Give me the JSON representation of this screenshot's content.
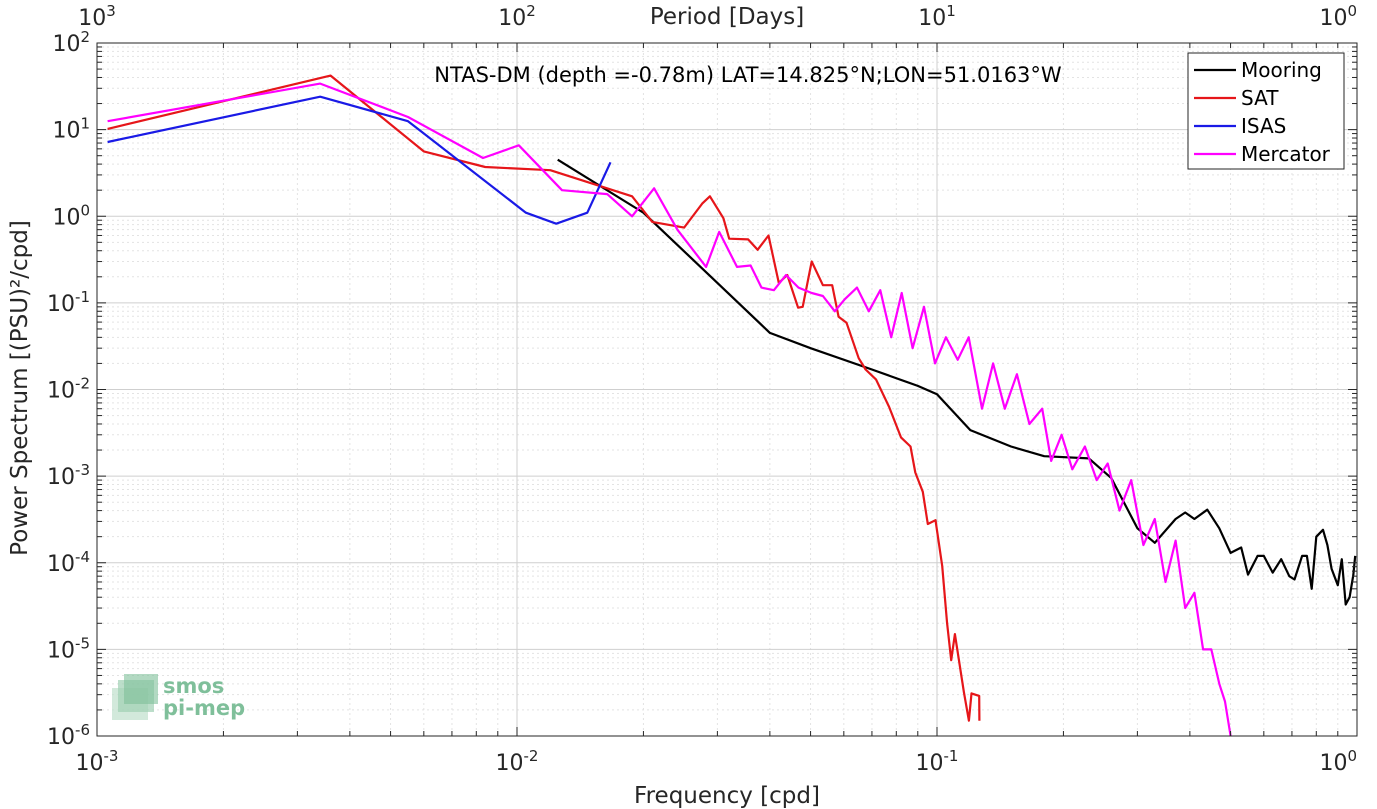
{
  "chart_data": {
    "type": "line",
    "title": "NTAS-DM (depth =-0.78m) LAT=14.825°N;LON=51.0163°W",
    "xlabel": "Frequency [cpd]",
    "ylabel": "Power Spectrum [(PSU)²/cpd]",
    "top_xlabel": "Period [Days]",
    "x_scale": "log",
    "y_scale": "log",
    "xlim": [
      0.001,
      1
    ],
    "ylim": [
      1e-06,
      100
    ],
    "grid": true,
    "legend_position": "top-right",
    "x_ticks": [
      {
        "base": "10",
        "exp": "-3",
        "value": 0.001
      },
      {
        "base": "10",
        "exp": "-2",
        "value": 0.01
      },
      {
        "base": "10",
        "exp": "-1",
        "value": 0.1
      },
      {
        "base": "10",
        "exp": "0",
        "value": 1
      }
    ],
    "y_ticks": [
      {
        "base": "10",
        "exp": "2",
        "value": 100
      },
      {
        "base": "10",
        "exp": "1",
        "value": 10
      },
      {
        "base": "10",
        "exp": "0",
        "value": 1
      },
      {
        "base": "10",
        "exp": "-1",
        "value": 0.1
      },
      {
        "base": "10",
        "exp": "-2",
        "value": 0.01
      },
      {
        "base": "10",
        "exp": "-3",
        "value": 0.001
      },
      {
        "base": "10",
        "exp": "-4",
        "value": 0.0001
      },
      {
        "base": "10",
        "exp": "-5",
        "value": 1e-05
      },
      {
        "base": "10",
        "exp": "-6",
        "value": 1e-06
      }
    ],
    "top_ticks": [
      {
        "base": "10",
        "exp": "3",
        "value": 1000
      },
      {
        "base": "10",
        "exp": "2",
        "value": 100
      },
      {
        "base": "10",
        "exp": "1",
        "value": 10
      },
      {
        "base": "10",
        "exp": "0",
        "value": 1
      }
    ],
    "series": [
      {
        "name": "Mooring",
        "color": "#000000",
        "points": [
          [
            0.0125,
            4.5
          ],
          [
            0.02,
            1.1
          ],
          [
            0.03,
            0.17
          ],
          [
            0.04,
            0.045
          ],
          [
            0.05,
            0.03
          ],
          [
            0.07,
            0.017
          ],
          [
            0.09,
            0.011
          ],
          [
            0.1,
            0.0088
          ],
          [
            0.12,
            0.0034
          ],
          [
            0.15,
            0.0022
          ],
          [
            0.18,
            0.0017
          ],
          [
            0.23,
            0.0016
          ],
          [
            0.26,
            0.00095
          ],
          [
            0.3,
            0.00025
          ],
          [
            0.33,
            0.00017
          ],
          [
            0.37,
            0.00032
          ],
          [
            0.39,
            0.00038
          ],
          [
            0.41,
            0.00032
          ],
          [
            0.44,
            0.00041
          ],
          [
            0.47,
            0.00025
          ],
          [
            0.5,
            0.00013
          ],
          [
            0.53,
            0.00015
          ],
          [
            0.55,
            7.3e-05
          ],
          [
            0.58,
            0.00012
          ],
          [
            0.6,
            0.00012
          ],
          [
            0.63,
            7.7e-05
          ],
          [
            0.66,
            0.00011
          ],
          [
            0.69,
            7e-05
          ],
          [
            0.71,
            6.4e-05
          ],
          [
            0.74,
            0.00012
          ],
          [
            0.76,
            0.00012
          ],
          [
            0.78,
            5e-05
          ],
          [
            0.8,
            0.0002
          ],
          [
            0.83,
            0.00024
          ],
          [
            0.85,
            0.00016
          ],
          [
            0.87,
            8.5e-05
          ],
          [
            0.9,
            5.5e-05
          ],
          [
            0.92,
            0.00011
          ],
          [
            0.94,
            3.3e-05
          ],
          [
            0.96,
            4e-05
          ],
          [
            0.98,
            7.2e-05
          ],
          [
            0.99,
            0.00012
          ]
        ]
      },
      {
        "name": "SAT",
        "color": "#e6161a",
        "points": [
          [
            0.00106,
            10.2
          ],
          [
            0.0036,
            42
          ],
          [
            0.006,
            5.6
          ],
          [
            0.0084,
            3.7
          ],
          [
            0.012,
            3.4
          ],
          [
            0.0188,
            1.7
          ],
          [
            0.021,
            0.86
          ],
          [
            0.025,
            0.74
          ],
          [
            0.0276,
            1.4
          ],
          [
            0.0288,
            1.7
          ],
          [
            0.031,
            0.95
          ],
          [
            0.032,
            0.55
          ],
          [
            0.0355,
            0.54
          ],
          [
            0.0374,
            0.41
          ],
          [
            0.0397,
            0.6
          ],
          [
            0.042,
            0.17
          ],
          [
            0.044,
            0.21
          ],
          [
            0.0467,
            0.088
          ],
          [
            0.0479,
            0.09
          ],
          [
            0.0503,
            0.3
          ],
          [
            0.0535,
            0.16
          ],
          [
            0.0563,
            0.16
          ],
          [
            0.0583,
            0.069
          ],
          [
            0.0609,
            0.059
          ],
          [
            0.0651,
            0.023
          ],
          [
            0.0676,
            0.017
          ],
          [
            0.0716,
            0.013
          ],
          [
            0.0769,
            0.0063
          ],
          [
            0.0821,
            0.0028
          ],
          [
            0.0865,
            0.0022
          ],
          [
            0.0888,
            0.0011
          ],
          [
            0.0925,
            0.00066
          ],
          [
            0.0951,
            0.00028
          ],
          [
            0.0992,
            0.00031
          ],
          [
            0.1029,
            9.2e-05
          ],
          [
            0.1057,
            2e-05
          ],
          [
            0.1081,
            7.5e-06
          ],
          [
            0.1103,
            1.5e-05
          ],
          [
            0.1159,
            3.2e-06
          ],
          [
            0.1191,
            1.5e-06
          ],
          [
            0.1208,
            3.1e-06
          ],
          [
            0.126,
            2.9e-06
          ],
          [
            0.1262,
            1.5e-06
          ]
        ]
      },
      {
        "name": "ISAS",
        "color": "#1a1ae6",
        "points": [
          [
            0.00106,
            7.2
          ],
          [
            0.0034,
            24
          ],
          [
            0.0055,
            12.5
          ],
          [
            0.0105,
            1.1
          ],
          [
            0.0124,
            0.82
          ],
          [
            0.0147,
            1.1
          ],
          [
            0.0167,
            4.2
          ]
        ]
      },
      {
        "name": "Mercator",
        "color": "#ff00ff",
        "points": [
          [
            0.00106,
            12.5
          ],
          [
            0.0034,
            34
          ],
          [
            0.0055,
            14
          ],
          [
            0.0083,
            4.7
          ],
          [
            0.0101,
            6.6
          ],
          [
            0.0128,
            2
          ],
          [
            0.0164,
            1.8
          ],
          [
            0.0188,
            1
          ],
          [
            0.0212,
            2.1
          ],
          [
            0.0241,
            0.7
          ],
          [
            0.0282,
            0.26
          ],
          [
            0.0303,
            0.66
          ],
          [
            0.0334,
            0.26
          ],
          [
            0.036,
            0.27
          ],
          [
            0.0382,
            0.15
          ],
          [
            0.0409,
            0.14
          ],
          [
            0.0437,
            0.21
          ],
          [
            0.0468,
            0.15
          ],
          [
            0.0503,
            0.13
          ],
          [
            0.0535,
            0.12
          ],
          [
            0.0571,
            0.08
          ],
          [
            0.0603,
            0.11
          ],
          [
            0.0645,
            0.15
          ],
          [
            0.0688,
            0.08
          ],
          [
            0.0733,
            0.14
          ],
          [
            0.0778,
            0.04
          ],
          [
            0.0824,
            0.13
          ],
          [
            0.0875,
            0.03
          ],
          [
            0.0931,
            0.09
          ],
          [
            0.0989,
            0.02
          ],
          [
            0.105,
            0.04
          ],
          [
            0.112,
            0.022
          ],
          [
            0.119,
            0.04
          ],
          [
            0.128,
            0.006
          ],
          [
            0.136,
            0.02
          ],
          [
            0.145,
            0.006
          ],
          [
            0.155,
            0.015
          ],
          [
            0.166,
            0.004
          ],
          [
            0.178,
            0.006
          ],
          [
            0.187,
            0.0015
          ],
          [
            0.198,
            0.003
          ],
          [
            0.21,
            0.0012
          ],
          [
            0.225,
            0.0022
          ],
          [
            0.24,
            0.0009
          ],
          [
            0.255,
            0.0014
          ],
          [
            0.272,
            0.0004
          ],
          [
            0.29,
            0.0009
          ],
          [
            0.31,
            0.00016
          ],
          [
            0.33,
            0.00032
          ],
          [
            0.35,
            6e-05
          ],
          [
            0.37,
            0.00018
          ],
          [
            0.39,
            3e-05
          ],
          [
            0.41,
            4.5e-05
          ],
          [
            0.43,
            1e-05
          ],
          [
            0.45,
            1e-05
          ],
          [
            0.47,
            4e-06
          ],
          [
            0.485,
            2.5e-06
          ],
          [
            0.5,
            1e-06
          ]
        ]
      }
    ]
  },
  "logo": {
    "line1": "smos",
    "line2": "pi-mep"
  }
}
